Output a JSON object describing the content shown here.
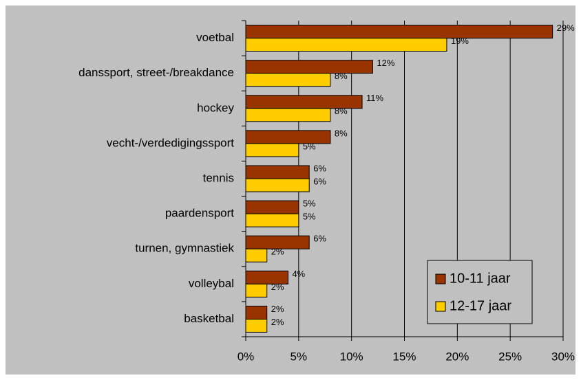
{
  "chart_data": {
    "type": "bar",
    "orientation": "horizontal",
    "categories": [
      "voetbal",
      "danssport, street-/breakdance",
      "hockey",
      "vecht-/verdedigingssport",
      "tennis",
      "paardensport",
      "turnen, gymnastiek",
      "volleybal",
      "basketbal"
    ],
    "series": [
      {
        "name": "10-11 jaar",
        "color": "#993300",
        "values": [
          29,
          12,
          11,
          8,
          6,
          5,
          6,
          4,
          2
        ],
        "value_labels": [
          "29%",
          "12%",
          "11%",
          "8%",
          "6%",
          "5%",
          "6%",
          "4%",
          "2%"
        ]
      },
      {
        "name": "12-17 jaar",
        "color": "#ffcc00",
        "values": [
          19,
          8,
          8,
          5,
          6,
          5,
          2,
          2,
          2
        ],
        "value_labels": [
          "19%",
          "8%",
          "8%",
          "5%",
          "6%",
          "5%",
          "2%",
          "2%",
          "2%"
        ]
      }
    ],
    "xlim": [
      0,
      30
    ],
    "xticks": [
      {
        "value": 0,
        "label": "0%"
      },
      {
        "value": 5,
        "label": "5%"
      },
      {
        "value": 10,
        "label": "10%"
      },
      {
        "value": 15,
        "label": "15%"
      },
      {
        "value": 20,
        "label": "20%"
      },
      {
        "value": 25,
        "label": "25%"
      },
      {
        "value": 30,
        "label": "30%"
      }
    ],
    "grid": true,
    "legend": "lower right"
  }
}
